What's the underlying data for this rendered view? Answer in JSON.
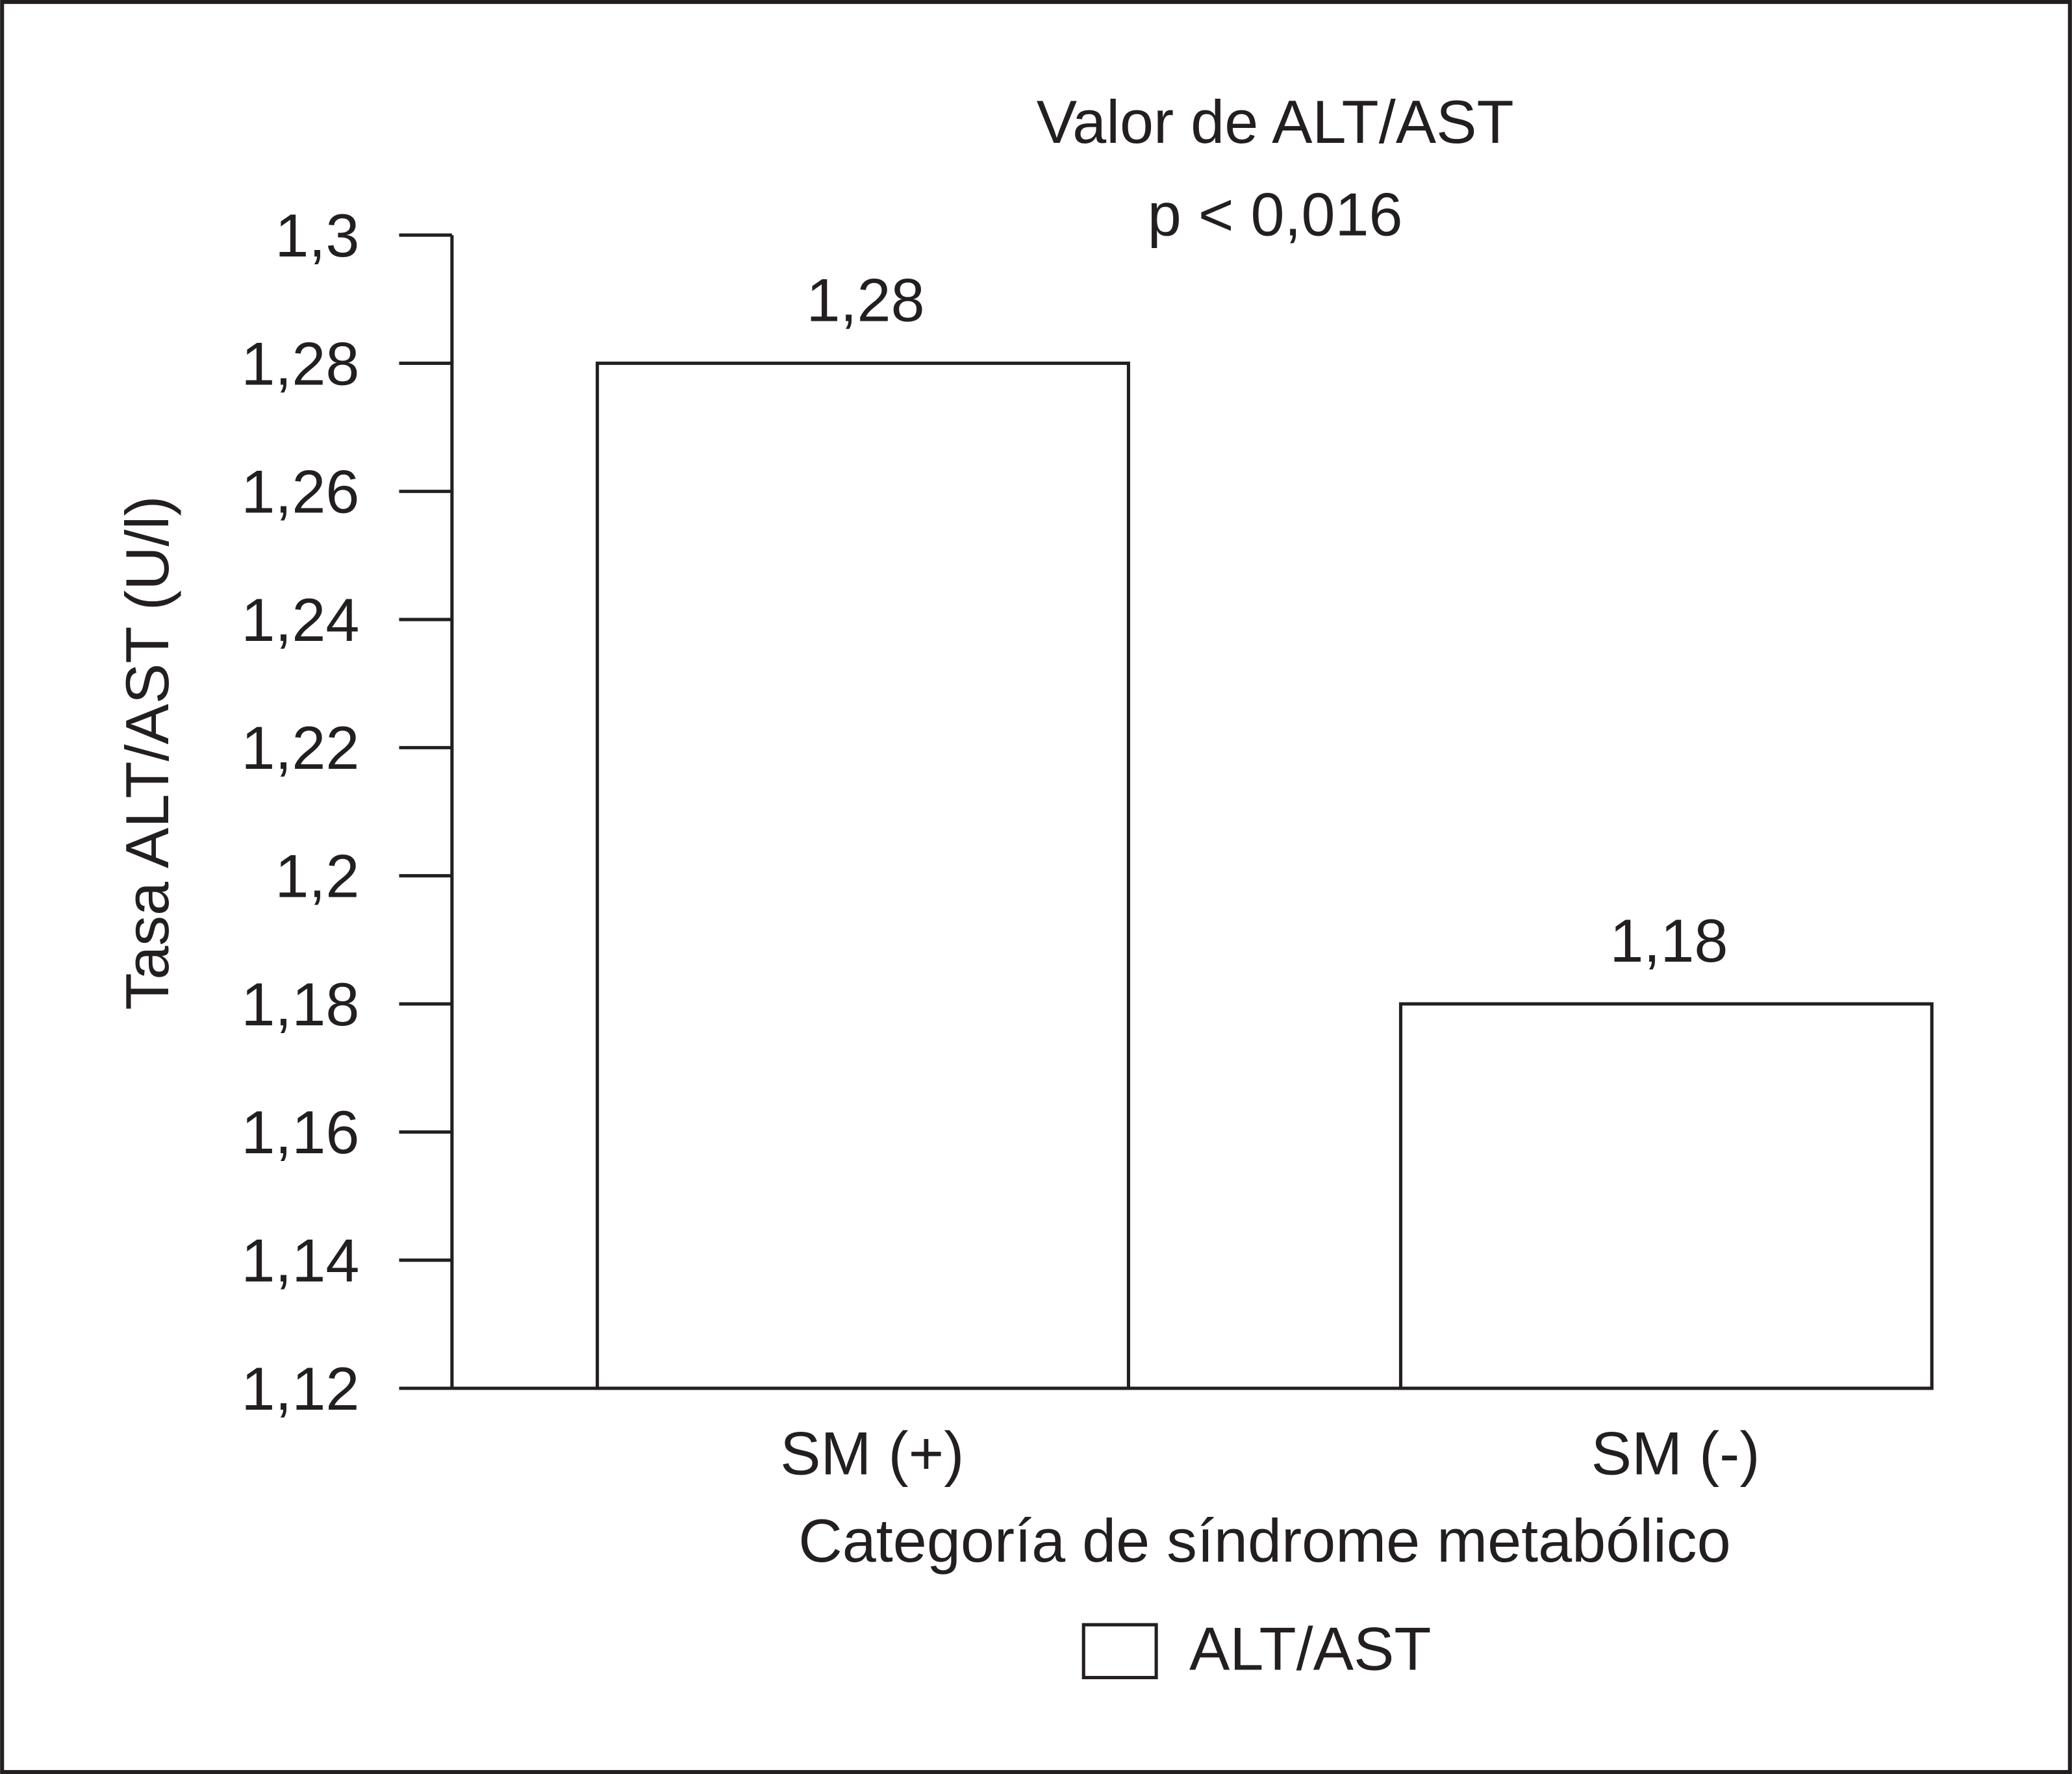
{
  "chart_data": {
    "type": "bar",
    "title": "Valor de ALT/AST",
    "subtitle": "p < 0,016",
    "x_label": "Categoría de síndrome metabólico",
    "y_label": "Tasa ALT/AST (U/l)",
    "categories": [
      "SM (+)",
      "SM (-)"
    ],
    "series": [
      {
        "name": "ALT/AST",
        "color": "#ffffff",
        "values": [
          1.28,
          1.18
        ],
        "value_labels": [
          "1,28",
          "1,18"
        ]
      }
    ],
    "ylim": [
      1.12,
      1.3
    ],
    "yticks": [
      {
        "value": 1.12,
        "label": "1,12"
      },
      {
        "value": 1.14,
        "label": "1,14"
      },
      {
        "value": 1.16,
        "label": "1,16"
      },
      {
        "value": 1.18,
        "label": "1,18"
      },
      {
        "value": 1.2,
        "label": "1,2"
      },
      {
        "value": 1.22,
        "label": "1,22"
      },
      {
        "value": 1.24,
        "label": "1,24"
      },
      {
        "value": 1.26,
        "label": "1,26"
      },
      {
        "value": 1.28,
        "label": "1,28"
      },
      {
        "value": 1.3,
        "label": "1,3"
      }
    ],
    "grid": false,
    "legend": "bottom"
  }
}
